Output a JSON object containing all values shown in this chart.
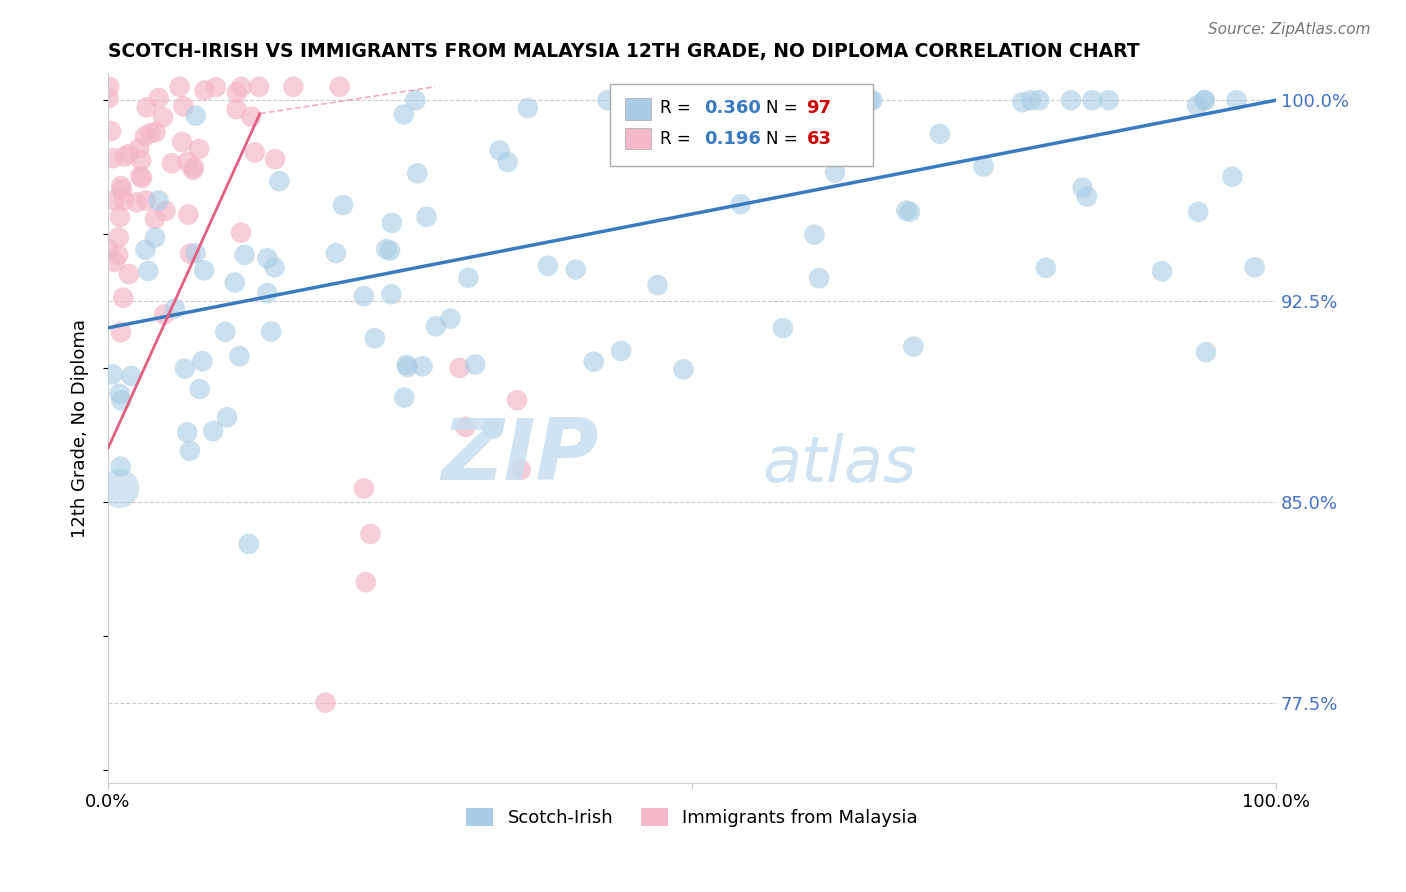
{
  "title": "SCOTCH-IRISH VS IMMIGRANTS FROM MALAYSIA 12TH GRADE, NO DIPLOMA CORRELATION CHART",
  "source": "Source: ZipAtlas.com",
  "ylabel": "12th Grade, No Diploma",
  "legend1_label": "Scotch-Irish",
  "legend2_label": "Immigrants from Malaysia",
  "R1": 0.36,
  "N1": 97,
  "R2": 0.196,
  "N2": 63,
  "watermark_zip": "ZIP",
  "watermark_atlas": "atlas",
  "scotch_irish_color": "#a8cce4",
  "malaysia_color": "#f4b8c8",
  "scotch_irish_line_color": "#3a7abf",
  "malaysia_line_color": "#e06080",
  "xlim": [
    0.0,
    1.0
  ],
  "ylim": [
    0.745,
    1.01
  ],
  "yticks": [
    0.775,
    0.85,
    0.925,
    1.0
  ],
  "ytick_labels": [
    "77.5%",
    "85.0%",
    "92.5%",
    "100.0%"
  ],
  "si_line_x0": 0.0,
  "si_line_y0": 0.915,
  "si_line_x1": 1.0,
  "si_line_y1": 1.0,
  "mal_line_x0": 0.0,
  "mal_line_y0": 0.87,
  "mal_line_x1": 0.13,
  "mal_line_y1": 0.995
}
